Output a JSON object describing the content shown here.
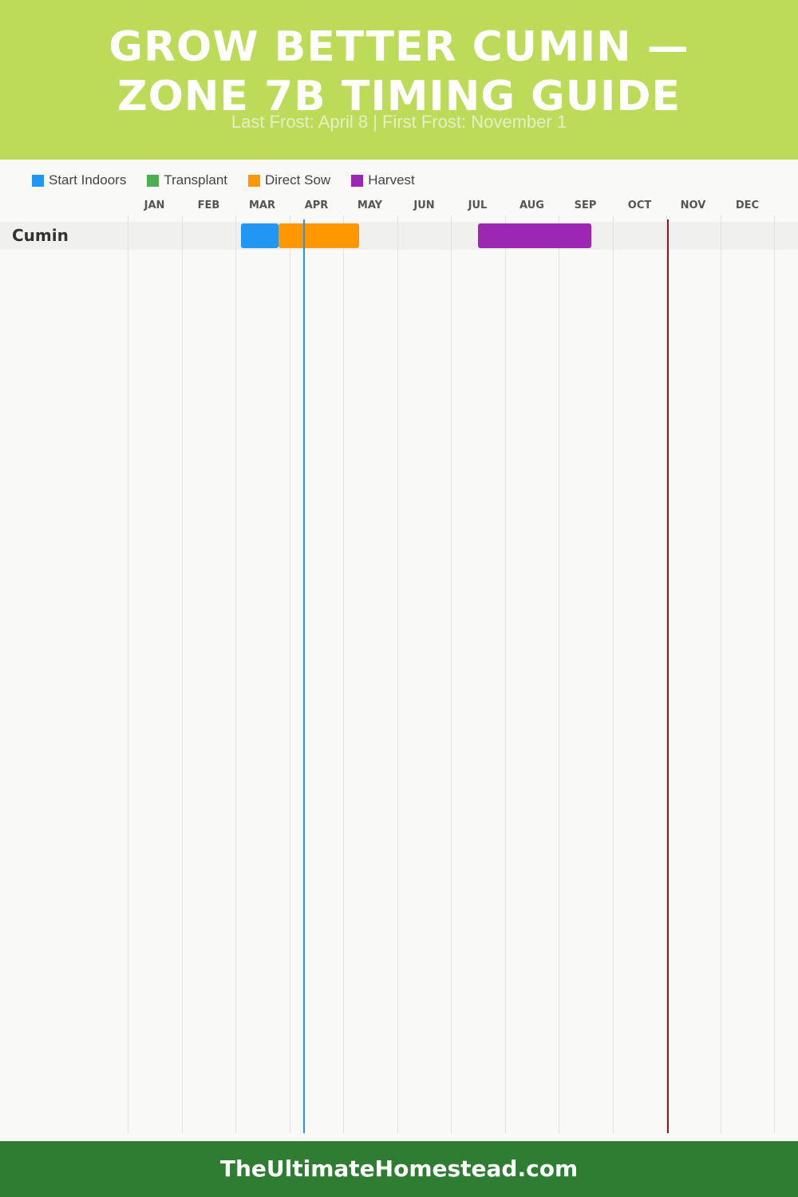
{
  "header": {
    "title": "GROW BETTER CUMIN — ZONE 7B TIMING GUIDE",
    "subtitle": "Last Frost: April 8 | First Frost: November 1"
  },
  "legend": [
    {
      "label": "Start Indoors",
      "color": "#2196f3"
    },
    {
      "label": "Transplant",
      "color": "#4caf50"
    },
    {
      "label": "Direct Sow",
      "color": "#ff9800"
    },
    {
      "label": "Harvest",
      "color": "#9c27b0"
    }
  ],
  "chart_data": {
    "type": "gantt",
    "x_categories": [
      "JAN",
      "FEB",
      "MAR",
      "APR",
      "MAY",
      "JUN",
      "JUL",
      "AUG",
      "SEP",
      "OCT",
      "NOV",
      "DEC"
    ],
    "x_range": [
      0,
      12
    ],
    "rows": [
      {
        "label": "Cumin",
        "bars": [
          {
            "activity": "Start Indoors",
            "start": 2.1,
            "end": 2.8,
            "color": "#2196f3"
          },
          {
            "activity": "Direct Sow",
            "start": 2.8,
            "end": 4.3,
            "color": "#ff9800"
          },
          {
            "activity": "Harvest",
            "start": 6.5,
            "end": 8.6,
            "color": "#9c27b0"
          }
        ]
      }
    ],
    "markers": [
      {
        "value": 3.27,
        "color": "#2196f3"
      },
      {
        "value": 10.03,
        "color": "#8b1a1a"
      }
    ],
    "grid": true,
    "legend_position": "top-left"
  },
  "footer": {
    "text": "TheUltimateHomestead.com"
  }
}
